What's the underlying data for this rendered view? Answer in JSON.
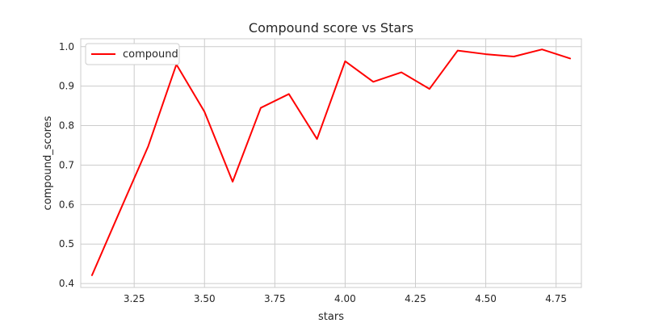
{
  "chart_data": {
    "type": "line",
    "title": "Compound score vs Stars",
    "xlabel": "stars",
    "ylabel": "compound_scores",
    "xlim": [
      3.06,
      4.84
    ],
    "ylim": [
      0.39,
      1.02
    ],
    "xticks": [
      3.25,
      3.5,
      3.75,
      4.0,
      4.25,
      4.5,
      4.75
    ],
    "xtick_labels": [
      "3.25",
      "3.50",
      "3.75",
      "4.00",
      "4.25",
      "4.50",
      "4.75"
    ],
    "yticks": [
      0.4,
      0.5,
      0.6,
      0.7,
      0.8,
      0.9,
      1.0
    ],
    "ytick_labels": [
      "0.4",
      "0.5",
      "0.6",
      "0.7",
      "0.8",
      "0.9",
      "1.0"
    ],
    "grid": true,
    "legend_position": "top-left",
    "series": [
      {
        "name": "compound",
        "color": "#ff0000",
        "x": [
          3.1,
          3.2,
          3.3,
          3.4,
          3.5,
          3.6,
          3.7,
          3.8,
          3.9,
          4.0,
          4.1,
          4.2,
          4.3,
          4.4,
          4.5,
          4.6,
          4.7,
          4.8
        ],
        "y": [
          0.421,
          0.585,
          0.748,
          0.955,
          0.835,
          0.658,
          0.845,
          0.88,
          0.766,
          0.963,
          0.911,
          0.935,
          0.893,
          0.99,
          0.981,
          0.975,
          0.993,
          0.97
        ]
      }
    ]
  }
}
